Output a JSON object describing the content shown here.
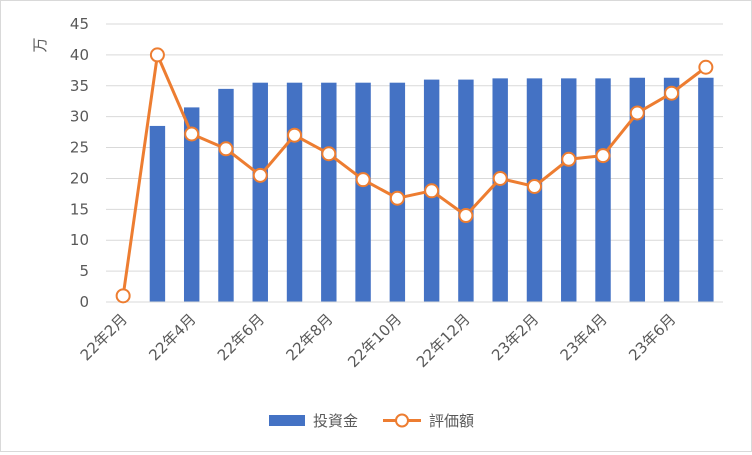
{
  "chart_data": {
    "type": "bar+line",
    "ylabel": "万",
    "ylim": [
      0,
      45
    ],
    "yticks": [
      0,
      5,
      10,
      15,
      20,
      25,
      30,
      35,
      40,
      45
    ],
    "grid": true,
    "legend_position": "bottom",
    "categories": [
      "22年2月",
      "22年3月",
      "22年4月",
      "22年5月",
      "22年6月",
      "22年7月",
      "22年8月",
      "22年9月",
      "22年10月",
      "22年11月",
      "22年12月",
      "23年1月",
      "23年2月",
      "23年3月",
      "23年4月",
      "23年5月",
      "23年6月",
      "23年7月"
    ],
    "x_tick_labels": [
      "22年2月",
      "22年4月",
      "22年6月",
      "22年8月",
      "22年10月",
      "22年12月",
      "23年2月",
      "23年4月",
      "23年6月"
    ],
    "series": [
      {
        "name": "投資金",
        "type": "bar",
        "color": "#4472c4",
        "values": [
          0,
          28.5,
          31.5,
          34.5,
          35.5,
          35.5,
          35.5,
          35.5,
          35.5,
          36,
          36,
          36.2,
          36.2,
          36.2,
          36.2,
          36.3,
          36.3,
          36.3
        ]
      },
      {
        "name": "評価額",
        "type": "line",
        "color": "#ed7d31",
        "values": [
          1.0,
          40.0,
          27.2,
          24.8,
          20.5,
          27.0,
          24.0,
          19.8,
          16.8,
          18.0,
          14.0,
          20.0,
          18.7,
          23.1,
          23.7,
          30.6,
          33.8,
          38.0
        ]
      }
    ]
  }
}
